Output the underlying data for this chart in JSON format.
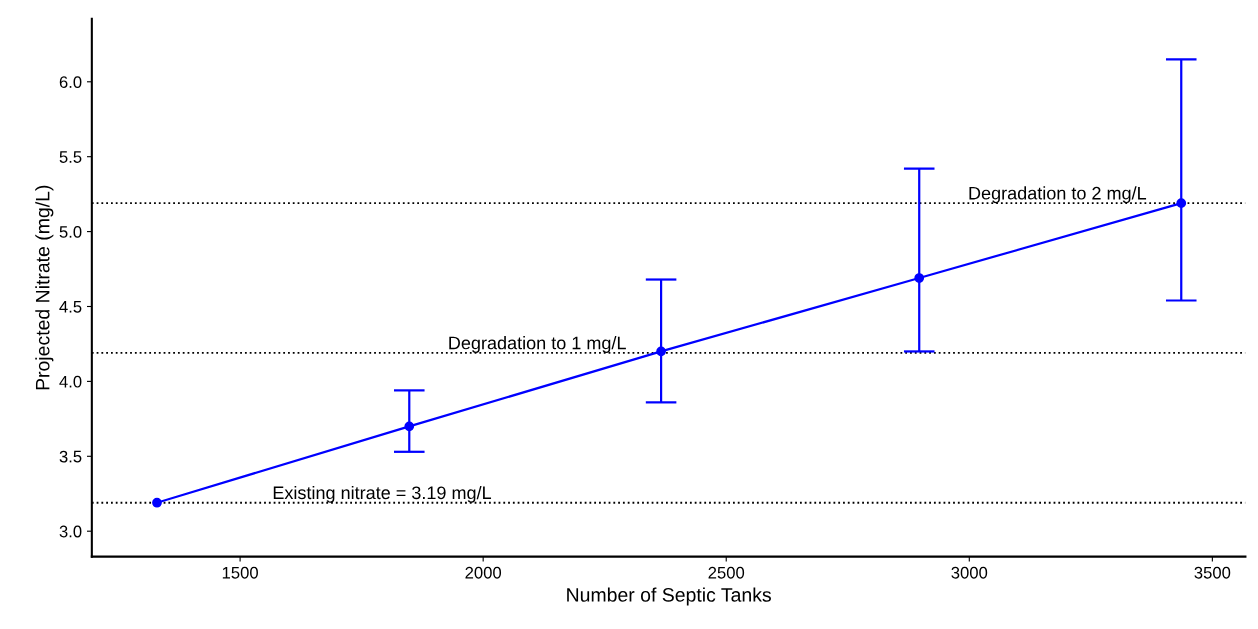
{
  "chart_data": {
    "type": "line",
    "xlabel": "Number of Septic Tanks",
    "ylabel": "Projected Nitrate (mg/L)",
    "x": [
      1329,
      1848,
      2366,
      2897,
      3436
    ],
    "series": [
      {
        "color": "#0000ff",
        "values": [
          3.19,
          3.7,
          4.2,
          4.69,
          5.19
        ],
        "errors": [
          null,
          [
            3.53,
            3.94
          ],
          [
            3.86,
            4.68
          ],
          [
            4.2,
            5.42
          ],
          [
            4.54,
            6.15
          ]
        ]
      }
    ],
    "marker": "circle",
    "line_style": "solid",
    "grid": false,
    "legend": false,
    "xlim": [
      1195,
      3568
    ],
    "xticks": [
      1500,
      2000,
      2500,
      3000,
      3500
    ],
    "ylim": [
      2.83,
      6.42
    ],
    "yticks": [
      {
        "value": 3.0,
        "label": "3.0"
      },
      {
        "value": 3.5,
        "label": "3.5"
      },
      {
        "value": 4.0,
        "label": "4.0"
      },
      {
        "value": 4.5,
        "label": "4.5"
      },
      {
        "value": 5.0,
        "label": "5.0"
      },
      {
        "value": 5.5,
        "label": "5.5"
      },
      {
        "value": 6.0,
        "label": "6.0"
      }
    ],
    "ref_lines": [
      {
        "axis": "y",
        "value": 3.19,
        "color": "#000000",
        "line_style": "dotted",
        "label": "Existing nitrate = 3.19 mg/L"
      },
      {
        "axis": "y",
        "value": 4.19,
        "color": "#000000",
        "line_style": "dotted",
        "label": "Degradation to 1 mg/L"
      },
      {
        "axis": "y",
        "value": 5.19,
        "color": "#000000",
        "line_style": "dotted",
        "label": "Degradation to 2 mg/L"
      }
    ]
  }
}
